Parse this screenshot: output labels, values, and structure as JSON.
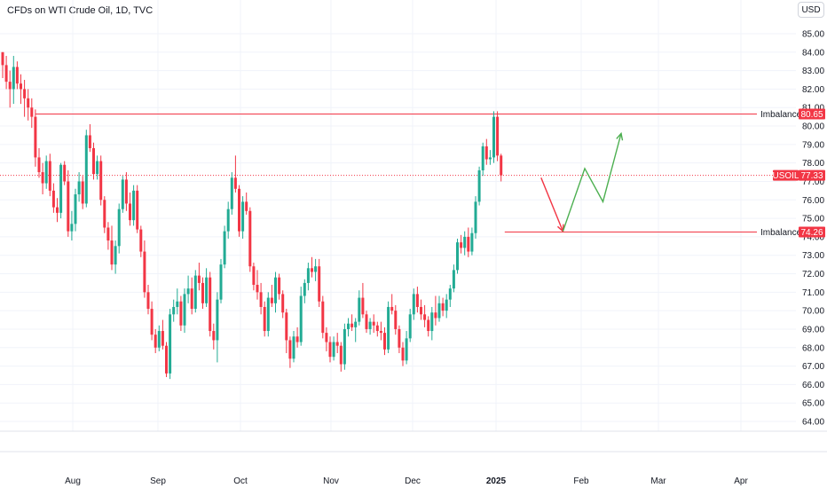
{
  "header": {
    "title": "CFDs on WTI Crude Oil, 1D, TVC",
    "currency": "USD"
  },
  "colors": {
    "up": "#22ab94",
    "down": "#f23645",
    "level": "#f23645",
    "projection_up": "#4caf50",
    "projection_down": "#f23645",
    "grid": "#f0f3fa"
  },
  "chart_data": {
    "type": "candlestick",
    "symbol": "USOIL",
    "timeframe": "1D",
    "price_scale": {
      "min": 63.5,
      "max": 85.5,
      "ticks": [
        "85.00",
        "84.00",
        "83.00",
        "82.00",
        "81.00",
        "80.00",
        "79.00",
        "78.00",
        "77.00",
        "76.00",
        "75.00",
        "74.00",
        "73.00",
        "72.00",
        "71.00",
        "70.00",
        "69.00",
        "68.00",
        "67.00",
        "66.00",
        "65.00",
        "64.00"
      ]
    },
    "time_labels": [
      {
        "label": "Aug",
        "bold": false
      },
      {
        "label": "Sep",
        "bold": false
      },
      {
        "label": "Oct",
        "bold": false
      },
      {
        "label": "Nov",
        "bold": false
      },
      {
        "label": "Dec",
        "bold": false
      },
      {
        "label": "2025",
        "bold": true
      },
      {
        "label": "Feb",
        "bold": false
      },
      {
        "label": "Mar",
        "bold": false
      },
      {
        "label": "Apr",
        "bold": false
      }
    ],
    "levels": [
      {
        "name": "Imbalance",
        "price": 80.65,
        "price_label": "80.65",
        "from_index": 9,
        "style": "solid"
      },
      {
        "name": "Imbalance",
        "price": 74.26,
        "price_label": "74.26",
        "from_index": 138,
        "style": "solid"
      },
      {
        "name": "USOIL",
        "price": 77.33,
        "price_label": "77.33",
        "from_index": 0,
        "style": "dotted"
      }
    ],
    "projection": {
      "down": [
        [
          148,
          77.2
        ],
        [
          154,
          74.3
        ]
      ],
      "up": [
        [
          154,
          74.3
        ],
        [
          160,
          77.7
        ],
        [
          165,
          75.9
        ],
        [
          170,
          79.6
        ]
      ]
    },
    "candles": [
      [
        84.0,
        84.0,
        82.6,
        83.3
      ],
      [
        83.3,
        83.8,
        82.0,
        82.4
      ],
      [
        82.4,
        83.0,
        81.0,
        82.0
      ],
      [
        82.0,
        83.8,
        81.2,
        83.2
      ],
      [
        83.2,
        83.5,
        82.0,
        82.3
      ],
      [
        82.3,
        82.8,
        81.2,
        82.0
      ],
      [
        82.0,
        82.5,
        80.5,
        81.5
      ],
      [
        81.5,
        82.0,
        80.3,
        81.0
      ],
      [
        81.0,
        81.5,
        79.9,
        80.5
      ],
      [
        80.5,
        80.9,
        77.8,
        78.3
      ],
      [
        78.3,
        78.8,
        77.2,
        77.5
      ],
      [
        77.5,
        78.0,
        76.3,
        76.9
      ],
      [
        76.9,
        78.4,
        76.6,
        78.1
      ],
      [
        78.1,
        78.5,
        76.2,
        76.5
      ],
      [
        76.5,
        76.9,
        75.3,
        75.6
      ],
      [
        75.6,
        76.1,
        74.8,
        75.3
      ],
      [
        75.3,
        78.0,
        75.0,
        77.9
      ],
      [
        77.9,
        78.1,
        76.8,
        77.0
      ],
      [
        77.0,
        77.6,
        74.0,
        74.3
      ],
      [
        74.3,
        75.4,
        73.8,
        74.7
      ],
      [
        74.7,
        76.6,
        74.3,
        76.3
      ],
      [
        76.3,
        77.5,
        75.9,
        77.0
      ],
      [
        77.0,
        77.3,
        75.5,
        75.8
      ],
      [
        75.8,
        79.8,
        75.6,
        79.5
      ],
      [
        79.5,
        80.1,
        78.6,
        78.8
      ],
      [
        78.8,
        79.1,
        77.1,
        77.4
      ],
      [
        77.4,
        78.4,
        77.1,
        78.1
      ],
      [
        78.1,
        78.4,
        75.7,
        76.0
      ],
      [
        76.0,
        76.2,
        74.2,
        74.5
      ],
      [
        74.5,
        74.8,
        73.3,
        73.8
      ],
      [
        73.8,
        74.6,
        72.2,
        72.5
      ],
      [
        72.5,
        73.8,
        72.0,
        73.5
      ],
      [
        73.5,
        75.8,
        73.1,
        75.5
      ],
      [
        75.5,
        77.3,
        75.3,
        77.1
      ],
      [
        77.1,
        77.5,
        75.4,
        75.8
      ],
      [
        75.8,
        76.4,
        74.6,
        74.9
      ],
      [
        74.9,
        76.8,
        74.6,
        76.5
      ],
      [
        76.5,
        76.8,
        74.2,
        74.4
      ],
      [
        74.4,
        74.6,
        72.9,
        73.2
      ],
      [
        73.2,
        73.8,
        70.7,
        71.0
      ],
      [
        71.0,
        71.4,
        69.8,
        70.1
      ],
      [
        70.1,
        70.5,
        68.4,
        68.7
      ],
      [
        68.7,
        69.0,
        67.7,
        68.0
      ],
      [
        68.0,
        69.2,
        67.8,
        68.9
      ],
      [
        68.9,
        69.5,
        67.9,
        68.1
      ],
      [
        68.1,
        68.3,
        66.4,
        66.6
      ],
      [
        66.6,
        70.1,
        66.3,
        69.8
      ],
      [
        69.8,
        70.6,
        69.4,
        70.2
      ],
      [
        70.2,
        71.2,
        69.8,
        70.5
      ],
      [
        70.5,
        70.8,
        68.9,
        69.2
      ],
      [
        69.2,
        71.2,
        68.8,
        70.9
      ],
      [
        70.9,
        71.9,
        70.4,
        71.2
      ],
      [
        71.2,
        71.8,
        69.8,
        70.1
      ],
      [
        70.1,
        72.2,
        69.9,
        71.9
      ],
      [
        71.9,
        72.6,
        71.1,
        71.5
      ],
      [
        71.5,
        71.8,
        70.1,
        70.4
      ],
      [
        70.4,
        72.3,
        70.2,
        71.8
      ],
      [
        71.8,
        72.1,
        68.6,
        68.9
      ],
      [
        68.9,
        69.3,
        67.9,
        68.4
      ],
      [
        68.4,
        71.0,
        67.2,
        70.6
      ],
      [
        70.6,
        72.8,
        70.4,
        72.5
      ],
      [
        72.5,
        74.6,
        72.3,
        74.3
      ],
      [
        74.3,
        75.9,
        73.9,
        75.5
      ],
      [
        75.5,
        77.5,
        75.2,
        77.2
      ],
      [
        77.2,
        78.4,
        76.4,
        76.6
      ],
      [
        76.6,
        76.8,
        74.0,
        74.3
      ],
      [
        74.3,
        76.2,
        73.9,
        75.9
      ],
      [
        75.9,
        76.4,
        75.2,
        75.4
      ],
      [
        75.4,
        75.6,
        72.1,
        72.4
      ],
      [
        72.4,
        72.6,
        71.1,
        71.4
      ],
      [
        71.4,
        72.2,
        70.6,
        71.0
      ],
      [
        71.0,
        71.5,
        69.8,
        70.2
      ],
      [
        70.2,
        70.5,
        68.6,
        68.9
      ],
      [
        68.9,
        71.0,
        68.6,
        70.7
      ],
      [
        70.7,
        71.4,
        70.2,
        70.4
      ],
      [
        70.4,
        72.1,
        69.9,
        71.8
      ],
      [
        71.8,
        72.0,
        70.6,
        70.9
      ],
      [
        70.9,
        71.1,
        69.6,
        69.9
      ],
      [
        69.9,
        70.1,
        67.7,
        68.4
      ],
      [
        68.4,
        68.6,
        66.9,
        67.4
      ],
      [
        67.4,
        68.9,
        67.2,
        68.6
      ],
      [
        68.6,
        69.1,
        68.0,
        68.3
      ],
      [
        68.3,
        71.3,
        68.1,
        70.8
      ],
      [
        70.8,
        71.7,
        70.4,
        71.5
      ],
      [
        71.5,
        72.6,
        71.1,
        72.3
      ],
      [
        72.3,
        72.9,
        71.8,
        72.1
      ],
      [
        72.1,
        72.8,
        71.6,
        72.4
      ],
      [
        72.4,
        72.8,
        70.2,
        70.5
      ],
      [
        70.5,
        70.8,
        68.5,
        68.8
      ],
      [
        68.8,
        69.1,
        67.8,
        68.3
      ],
      [
        68.3,
        68.6,
        67.2,
        67.5
      ],
      [
        67.5,
        68.6,
        67.3,
        68.3
      ],
      [
        68.3,
        68.8,
        67.7,
        68.1
      ],
      [
        68.1,
        68.3,
        66.7,
        67.1
      ],
      [
        67.1,
        69.3,
        66.8,
        69.0
      ],
      [
        69.0,
        69.6,
        68.6,
        69.3
      ],
      [
        69.3,
        69.8,
        68.9,
        69.1
      ],
      [
        69.1,
        69.6,
        68.3,
        69.4
      ],
      [
        69.4,
        71.1,
        69.2,
        70.7
      ],
      [
        70.7,
        71.5,
        69.6,
        69.8
      ],
      [
        69.8,
        70.0,
        68.8,
        69.0
      ],
      [
        69.0,
        69.6,
        68.7,
        69.4
      ],
      [
        69.4,
        69.8,
        68.8,
        69.2
      ],
      [
        69.2,
        69.4,
        68.6,
        68.9
      ],
      [
        68.9,
        69.4,
        68.4,
        68.8
      ],
      [
        68.8,
        69.1,
        67.6,
        67.9
      ],
      [
        67.9,
        70.5,
        67.7,
        70.2
      ],
      [
        70.2,
        70.9,
        69.8,
        70.0
      ],
      [
        70.0,
        70.3,
        68.7,
        69.0
      ],
      [
        69.0,
        69.2,
        67.7,
        68.0
      ],
      [
        68.0,
        68.3,
        67.0,
        67.3
      ],
      [
        67.3,
        68.9,
        67.1,
        68.5
      ],
      [
        68.5,
        70.1,
        68.3,
        69.8
      ],
      [
        69.8,
        71.2,
        69.5,
        70.9
      ],
      [
        70.9,
        71.3,
        69.9,
        70.2
      ],
      [
        70.2,
        70.6,
        69.5,
        69.8
      ],
      [
        69.8,
        70.3,
        69.1,
        69.5
      ],
      [
        69.5,
        69.7,
        68.6,
        68.9
      ],
      [
        68.9,
        70.2,
        68.4,
        69.9
      ],
      [
        69.9,
        70.8,
        69.2,
        69.6
      ],
      [
        69.6,
        70.8,
        69.4,
        70.4
      ],
      [
        70.4,
        70.7,
        69.7,
        70.0
      ],
      [
        70.0,
        70.9,
        69.6,
        70.6
      ],
      [
        70.6,
        71.4,
        70.2,
        71.2
      ],
      [
        71.2,
        72.5,
        71.0,
        72.2
      ],
      [
        72.2,
        73.9,
        72.0,
        73.7
      ],
      [
        73.7,
        74.1,
        73.1,
        73.4
      ],
      [
        73.4,
        74.3,
        73.0,
        74.0
      ],
      [
        74.0,
        74.5,
        72.9,
        73.2
      ],
      [
        73.2,
        74.5,
        73.0,
        74.2
      ],
      [
        74.2,
        76.2,
        73.9,
        75.9
      ],
      [
        75.9,
        77.8,
        75.7,
        77.6
      ],
      [
        77.6,
        79.1,
        77.3,
        78.9
      ],
      [
        78.9,
        79.3,
        77.9,
        78.2
      ],
      [
        78.2,
        78.7,
        77.9,
        78.3
      ],
      [
        78.3,
        80.8,
        78.0,
        80.5
      ],
      [
        80.5,
        80.8,
        78.1,
        78.4
      ],
      [
        78.4,
        78.5,
        77.0,
        77.33
      ]
    ]
  }
}
